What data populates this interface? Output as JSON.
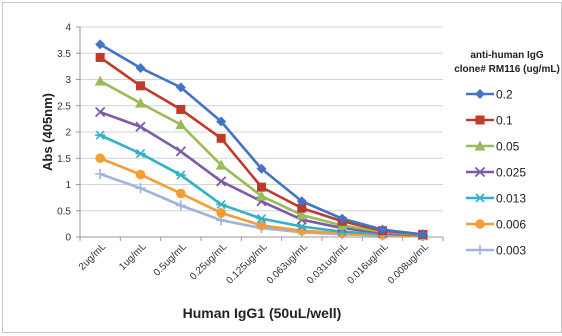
{
  "chart_data": {
    "type": "line",
    "title": "",
    "xlabel": "Human IgG1 (50uL/well)",
    "ylabel": "Abs (405nm)",
    "ylim": [
      0,
      4
    ],
    "yticks": [
      "0",
      "0.5",
      "1",
      "1.5",
      "2",
      "2.5",
      "3",
      "3.5",
      "4"
    ],
    "grid": true,
    "categories": [
      "2ug/mL",
      "1ug/mL",
      "0.5ug/mL",
      "0.25ug/mL",
      "0.125ug/mL",
      "0.063ug/mL",
      "0.031ug/mL",
      "0.016ug/mL",
      "0.008ug/mL"
    ],
    "legend": {
      "title_line1": "anti-human IgG",
      "title_line2": "clone# RM116 (ug/mL)",
      "placement": "right"
    },
    "series": [
      {
        "name": "0.2",
        "color": "#4472C4",
        "marker": "diamond",
        "values": [
          3.67,
          3.22,
          2.85,
          2.2,
          1.3,
          0.68,
          0.35,
          0.14,
          0.05
        ]
      },
      {
        "name": "0.1",
        "color": "#C0392B",
        "marker": "square",
        "values": [
          3.42,
          2.88,
          2.43,
          1.88,
          0.95,
          0.55,
          0.3,
          0.12,
          0.05
        ]
      },
      {
        "name": "0.05",
        "color": "#9BBB59",
        "marker": "triangle",
        "values": [
          2.97,
          2.55,
          2.14,
          1.37,
          0.78,
          0.42,
          0.22,
          0.1,
          0.04
        ]
      },
      {
        "name": "0.025",
        "color": "#7D5BA6",
        "marker": "x",
        "values": [
          2.38,
          2.1,
          1.63,
          1.06,
          0.68,
          0.33,
          0.17,
          0.08,
          0.03
        ]
      },
      {
        "name": "0.013",
        "color": "#31B0C6",
        "marker": "star",
        "values": [
          1.94,
          1.59,
          1.18,
          0.62,
          0.35,
          0.2,
          0.1,
          0.06,
          0.03
        ]
      },
      {
        "name": "0.006",
        "color": "#F59C34",
        "marker": "circle",
        "values": [
          1.5,
          1.19,
          0.83,
          0.46,
          0.22,
          0.12,
          0.07,
          0.04,
          0.02
        ]
      },
      {
        "name": "0.003",
        "color": "#9FB3DB",
        "marker": "plus",
        "values": [
          1.2,
          0.93,
          0.6,
          0.32,
          0.17,
          0.09,
          0.05,
          0.03,
          0.02
        ]
      }
    ]
  }
}
